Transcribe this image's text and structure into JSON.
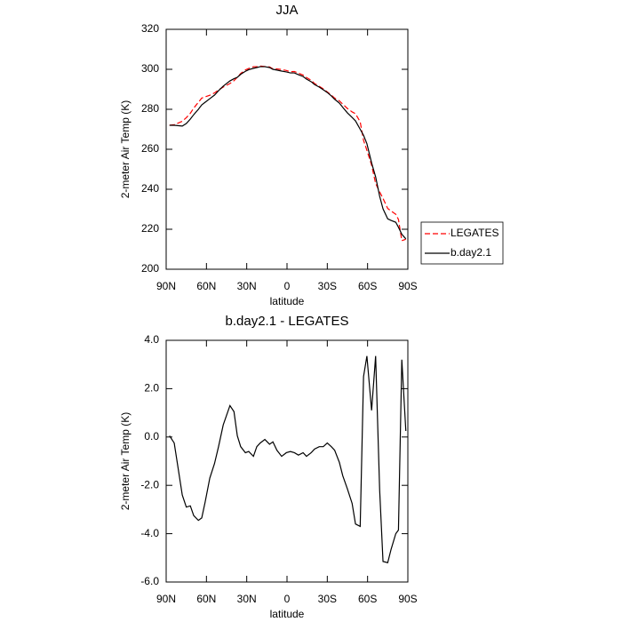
{
  "chart_data": [
    {
      "type": "line",
      "title": "JJA",
      "x_label": "latitude",
      "y_label": "2-meter Air Temp (K)",
      "x": [
        87.5,
        84,
        78,
        75,
        72,
        69.5,
        66,
        63.5,
        61,
        57.5,
        54,
        51,
        47.5,
        42.5,
        39.5,
        37,
        34.5,
        31,
        28.5,
        25,
        22.5,
        20,
        16.5,
        13,
        10.5,
        7.5,
        4,
        0.5,
        -2.5,
        -5.5,
        -8.5,
        -12,
        -14.5,
        -18,
        -20.5,
        -24,
        -27,
        -30,
        -33,
        -35.5,
        -39,
        -41.5,
        -45,
        -48.5,
        -51,
        -54.5,
        -57,
        -59.5,
        -63,
        -66,
        -69,
        -71.5,
        -75,
        -77.5,
        -81,
        -83,
        -85.5,
        -88.5
      ],
      "series": [
        {
          "name": "LEGATES",
          "color": "#ff0000",
          "line_style": "dashed",
          "values": [
            272.0,
            272.3,
            274.0,
            275.8,
            278.0,
            280.6,
            283.5,
            285.6,
            286.2,
            287.0,
            288.2,
            289.7,
            291.1,
            292.9,
            294.3,
            296.0,
            297.9,
            299.7,
            300.4,
            301.3,
            301.3,
            301.6,
            301.4,
            301.2,
            300.2,
            300.2,
            299.9,
            299.4,
            298.8,
            298.9,
            298.1,
            297.1,
            295.9,
            294.5,
            292.9,
            291.5,
            290.2,
            288.7,
            287.1,
            285.6,
            284.2,
            282.6,
            280.4,
            278.7,
            277.8,
            273.7,
            264.5,
            259.5,
            252.1,
            242.9,
            238.7,
            235.4,
            230.4,
            229.1,
            227.5,
            224.9,
            214.3,
            215.0
          ]
        },
        {
          "name": "b.day2.1",
          "color": "#000000",
          "line_style": "solid",
          "values": [
            272.0,
            272.0,
            271.6,
            272.9,
            275.1,
            277.3,
            280.0,
            282.2,
            283.5,
            285.3,
            287.1,
            289.3,
            291.6,
            294.2,
            295.3,
            296.0,
            297.5,
            299.0,
            299.8,
            300.5,
            300.9,
            301.3,
            301.3,
            300.9,
            300.0,
            299.6,
            299.1,
            298.7,
            298.2,
            298.2,
            297.3,
            296.4,
            295.1,
            293.8,
            292.4,
            291.1,
            289.8,
            288.4,
            286.7,
            285.0,
            283.1,
            281.0,
            278.2,
            275.9,
            274.2,
            270.0,
            267.0,
            262.8,
            253.2,
            246.2,
            236.5,
            230.2,
            225.2,
            224.4,
            223.5,
            221.0,
            217.5,
            215.2
          ]
        }
      ],
      "xlim": [
        90,
        -90
      ],
      "xticks": [
        {
          "value": 90,
          "label": "90N"
        },
        {
          "value": 60,
          "label": "60N"
        },
        {
          "value": 30,
          "label": "30N"
        },
        0,
        {
          "value": -30,
          "label": "30S"
        },
        {
          "value": -60,
          "label": "60S"
        },
        {
          "value": -90,
          "label": "90S"
        }
      ],
      "ylim": [
        200,
        320
      ],
      "yticks": [
        200,
        220,
        240,
        260,
        280,
        300,
        320
      ],
      "legend": "right"
    },
    {
      "type": "line",
      "title": "b.day2.1 - LEGATES",
      "x_label": "latitude",
      "y_label": "2-meter Air Temp (K)",
      "x": [
        87.5,
        84,
        78,
        75,
        72,
        69.5,
        66,
        63.5,
        61,
        57.5,
        54,
        51,
        47.5,
        42.5,
        39.5,
        37,
        34.5,
        31,
        28.5,
        25,
        22.5,
        20,
        16.5,
        13,
        10.5,
        7.5,
        4,
        0.5,
        -2.5,
        -5.5,
        -8.5,
        -12,
        -14.5,
        -18,
        -20.5,
        -24,
        -27,
        -30,
        -33,
        -35.5,
        -39,
        -41.5,
        -45,
        -48.5,
        -51,
        -54.5,
        -57,
        -59.5,
        -63,
        -66,
        -69,
        -71.5,
        -75,
        -77.5,
        -81,
        -83,
        -85.5,
        -88.5
      ],
      "values": [
        0.05,
        -0.25,
        -2.4,
        -2.9,
        -2.85,
        -3.25,
        -3.45,
        -3.35,
        -2.7,
        -1.7,
        -1.1,
        -0.4,
        0.5,
        1.3,
        1.05,
        0.05,
        -0.4,
        -0.65,
        -0.6,
        -0.8,
        -0.4,
        -0.25,
        -0.1,
        -0.3,
        -0.2,
        -0.55,
        -0.8,
        -0.65,
        -0.6,
        -0.65,
        -0.75,
        -0.65,
        -0.8,
        -0.65,
        -0.5,
        -0.4,
        -0.4,
        -0.25,
        -0.4,
        -0.55,
        -1.05,
        -1.6,
        -2.15,
        -2.75,
        -3.6,
        -3.7,
        2.5,
        3.35,
        1.1,
        3.35,
        -2.2,
        -5.15,
        -5.2,
        -4.65,
        -4.0,
        -3.85,
        3.2,
        0.25
      ],
      "color": "#000000",
      "xlim": [
        90,
        -90
      ],
      "xticks": [
        {
          "value": 90,
          "label": "90N"
        },
        {
          "value": 60,
          "label": "60N"
        },
        {
          "value": 30,
          "label": "30N"
        },
        0,
        {
          "value": -30,
          "label": "30S"
        },
        {
          "value": -60,
          "label": "60S"
        },
        {
          "value": -90,
          "label": "90S"
        }
      ],
      "ylim": [
        -6,
        4
      ],
      "yticks": [
        {
          "value": -6,
          "label": "-6.0"
        },
        {
          "value": -4,
          "label": "-4.0"
        },
        {
          "value": -2,
          "label": "-2.0"
        },
        {
          "value": 0,
          "label": "0.0"
        },
        {
          "value": 2,
          "label": "2.0"
        },
        {
          "value": 4,
          "label": "4.0"
        }
      ]
    }
  ]
}
